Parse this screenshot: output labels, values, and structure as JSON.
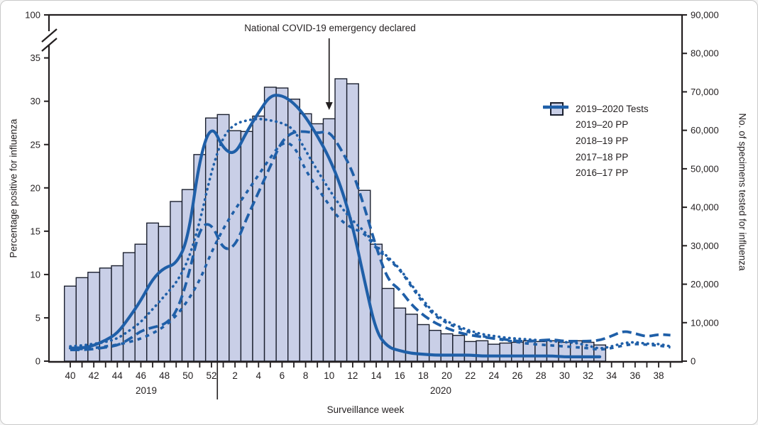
{
  "figure": {
    "annotation": "National COVID-19 emergency declared",
    "x_axis_title": "Surveillance week",
    "left_axis_title": "Percentage positive for influenza",
    "right_axis_title": "No. of specimens tested for influenza",
    "year_labels": [
      "2019",
      "2020"
    ],
    "legend": [
      {
        "label": "2019–2020 Tests",
        "swatch": "bar"
      },
      {
        "label": "2019–20 PP",
        "swatch": "solid"
      },
      {
        "label": "2018–19 PP",
        "swatch": "long-dash"
      },
      {
        "label": "2017–18 PP",
        "swatch": "dotted"
      },
      {
        "label": "2016–17 PP",
        "swatch": "short-dash"
      }
    ],
    "colors": {
      "line_blue": "#1f5fa8",
      "bar_fill": "#c9cfe7",
      "bar_border": "#1a1f2e",
      "axis": "#231f20"
    }
  },
  "chart_data": {
    "type": "combo: bar (right axis) + 4 line series (left axis)",
    "title": "",
    "xlabel": "Surveillance week",
    "left_axis": {
      "label": "Percentage positive for influenza",
      "ticks": [
        0,
        5,
        10,
        15,
        20,
        25,
        30,
        35
      ],
      "broken_axis_top_tick": 100,
      "range_px_maps_0_to_35": true
    },
    "right_axis": {
      "label": "No. of specimens tested for influenza",
      "ticks": [
        0,
        10000,
        20000,
        30000,
        40000,
        50000,
        60000,
        70000,
        80000,
        90000
      ],
      "max": 90000
    },
    "x_weeks": [
      40,
      41,
      42,
      43,
      44,
      45,
      46,
      47,
      48,
      49,
      50,
      51,
      52,
      1,
      2,
      3,
      4,
      5,
      6,
      7,
      8,
      9,
      10,
      11,
      12,
      13,
      14,
      15,
      16,
      17,
      18,
      19,
      20,
      21,
      22,
      23,
      24,
      25,
      26,
      27,
      28,
      29,
      30,
      31,
      32,
      33,
      34,
      35,
      36,
      37,
      38,
      39
    ],
    "x_label_every_even_week": true,
    "year_divider_after_index": 12,
    "bars": {
      "name": "2019–2020 Tests",
      "axis": "right",
      "values": [
        19500,
        21700,
        23100,
        24200,
        24800,
        28200,
        30400,
        35900,
        35000,
        41500,
        44600,
        53700,
        63200,
        64100,
        59900,
        59700,
        63700,
        71200,
        71000,
        68100,
        64300,
        61700,
        63000,
        73400,
        72100,
        44400,
        30400,
        18900,
        13800,
        12200,
        9500,
        8000,
        7100,
        6700,
        5100,
        5300,
        4400,
        4700,
        4900,
        5300,
        5100,
        5300,
        4900,
        5300,
        4900,
        4200,
        null,
        null,
        null,
        null,
        null,
        null
      ]
    },
    "series": [
      {
        "name": "2016–17 PP",
        "style": "short-dash",
        "values": [
          1.4,
          1.4,
          1.5,
          1.7,
          1.9,
          2.2,
          2.6,
          3.2,
          4.0,
          5.2,
          7.0,
          9.3,
          12.6,
          15.3,
          17.5,
          19.5,
          21.5,
          23.5,
          25.3,
          25.0,
          22.0,
          20.0,
          18.0,
          16.2,
          15.3,
          14.8,
          13.0,
          11.8,
          10.6,
          8.6,
          6.7,
          5.2,
          4.4,
          3.8,
          3.3,
          2.9,
          2.6,
          2.4,
          2.2,
          2.0,
          1.9,
          1.8,
          1.7,
          1.6,
          1.5,
          1.3,
          1.5,
          1.8,
          2.0,
          1.9,
          1.8,
          1.6
        ]
      },
      {
        "name": "2017–18 PP",
        "style": "dotted",
        "values": [
          1.7,
          1.8,
          2.0,
          2.2,
          2.6,
          3.5,
          4.5,
          6.0,
          7.5,
          9.0,
          11.5,
          16.0,
          22.0,
          26.0,
          27.4,
          27.8,
          28.0,
          27.8,
          27.5,
          26.8,
          24.3,
          22.0,
          19.8,
          17.8,
          16.2,
          15.0,
          13.3,
          12.0,
          10.7,
          8.8,
          7.0,
          5.4,
          4.6,
          4.0,
          3.5,
          3.1,
          2.9,
          2.7,
          2.6,
          2.5,
          2.4,
          2.3,
          2.2,
          2.1,
          1.8,
          1.4,
          1.7,
          2.1,
          2.2,
          2.0,
          2.0,
          1.7
        ]
      },
      {
        "name": "2018–19 PP",
        "style": "long-dash",
        "values": [
          1.3,
          1.3,
          1.4,
          1.6,
          1.8,
          2.5,
          3.5,
          3.9,
          4.2,
          5.5,
          9.5,
          15.5,
          16.0,
          12.8,
          13.2,
          16.5,
          19.5,
          22.5,
          25.5,
          26.5,
          26.5,
          26.3,
          26.6,
          24.5,
          21.9,
          17.8,
          13.1,
          9.3,
          8.3,
          6.5,
          5.3,
          4.4,
          3.8,
          3.3,
          3.0,
          2.8,
          2.6,
          2.5,
          2.3,
          2.3,
          2.4,
          2.5,
          2.3,
          2.3,
          2.3,
          2.4,
          2.9,
          3.5,
          3.2,
          2.8,
          3.1,
          3.0
        ]
      },
      {
        "name": "2019–20 PP",
        "style": "solid",
        "values": [
          1.5,
          1.5,
          1.8,
          2.4,
          3.2,
          5.0,
          7.0,
          9.5,
          10.8,
          11.2,
          14.0,
          23.5,
          27.4,
          24.5,
          23.8,
          26.5,
          28.7,
          30.7,
          30.7,
          29.8,
          28.2,
          26.0,
          23.5,
          20.2,
          15.6,
          9.3,
          3.3,
          1.6,
          1.2,
          0.9,
          0.8,
          0.7,
          0.7,
          0.7,
          0.7,
          0.6,
          0.6,
          0.6,
          0.6,
          0.6,
          0.6,
          0.6,
          0.5,
          0.5,
          0.5,
          0.5,
          null,
          null,
          null,
          null,
          null,
          null
        ]
      }
    ]
  }
}
